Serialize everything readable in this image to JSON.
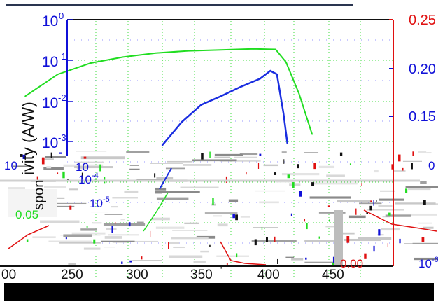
{
  "chart_data": {
    "type": "line",
    "ylabel": "ivity (A/W)",
    "ylabel_secondary": "spon",
    "x": [
      225,
      250,
      275,
      300,
      325,
      350,
      375,
      400,
      425
    ],
    "xlim": [
      200,
      450
    ],
    "xticks": [
      "00",
      "250",
      "300",
      "350",
      "400",
      "450"
    ],
    "yscale": "log",
    "ylim": [
      0.0001,
      1
    ],
    "yticks_left": [
      "10",
      "-1",
      "-2",
      "-3"
    ],
    "yticks_left_full": [
      "10^0",
      "10^-1",
      "10^-2",
      "10^-3"
    ],
    "yticks_right": [
      "0.25",
      "0.20",
      "0.15"
    ],
    "colors": {
      "axis_left": "#1010d8",
      "axis_right": "#e01010",
      "series_green": "#20dd20",
      "series_blue": "#1a2ee0"
    },
    "series": [
      {
        "color": "green",
        "points": [
          [
            200,
            0.013
          ],
          [
            225,
            0.045
          ],
          [
            250,
            0.085
          ],
          [
            275,
            0.12
          ],
          [
            300,
            0.15
          ],
          [
            325,
            0.17
          ],
          [
            350,
            0.18
          ],
          [
            375,
            0.19
          ],
          [
            392,
            0.185
          ],
          [
            400,
            0.09
          ],
          [
            410,
            0.015
          ],
          [
            420,
            0.0015
          ]
        ]
      },
      {
        "color": "blue",
        "points": [
          [
            305,
            0.0008
          ],
          [
            320,
            0.003
          ],
          [
            335,
            0.008
          ],
          [
            350,
            0.013
          ],
          [
            365,
            0.022
          ],
          [
            380,
            0.035
          ],
          [
            388,
            0.055
          ],
          [
            393,
            0.045
          ],
          [
            398,
            0.005
          ],
          [
            401,
            0.0009
          ]
        ]
      }
    ],
    "noise_labels": [
      "10",
      "0",
      "10",
      "0.05",
      "10",
      "10",
      "0.00",
      "10"
    ],
    "noise_labels_sup": [
      "",
      "",
      "-4",
      "",
      "-5",
      "-6",
      "",
      ""
    ],
    "grid": true
  }
}
